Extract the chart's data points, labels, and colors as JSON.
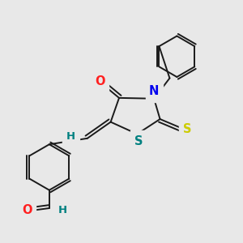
{
  "bg_color": "#e8e8e8",
  "bond_color": "#1a1a1a",
  "atom_colors": {
    "O": "#ff2020",
    "N": "#0000ee",
    "S_thioxo": "#cccc00",
    "S_ring": "#008080",
    "H": "#008080",
    "C": "#1a1a1a"
  },
  "figsize": [
    3.0,
    3.0
  ],
  "dpi": 100
}
